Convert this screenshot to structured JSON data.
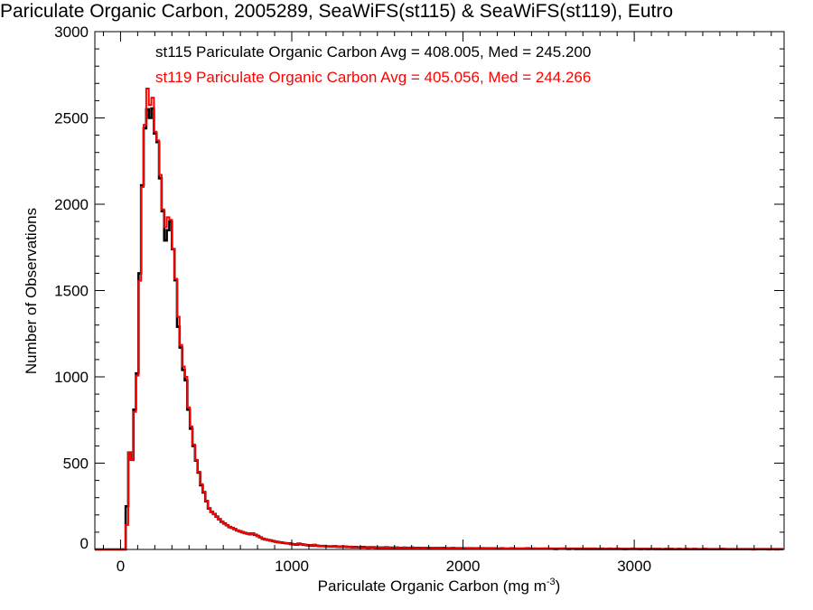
{
  "chart_data": {
    "type": "histogram-step",
    "title": "Pariculate Organic Carbon, 2005289, SeaWiFS(st115) & SeaWiFS(st119), Eutro",
    "xlabel": "Pariculate Organic Carbon (mg m",
    "xlabel_sup": "-3",
    "xlabel_end": ")",
    "ylabel": "Number of Observations",
    "xlim": [
      -150,
      3875
    ],
    "ylim": [
      0,
      3000
    ],
    "x_major_ticks": [
      0,
      1000,
      2000,
      3000
    ],
    "x_tick_labels": [
      "0",
      "1000",
      "2000",
      "3000"
    ],
    "x_minor_step": 100,
    "y_major_ticks": [
      0,
      500,
      1000,
      1500,
      2000,
      2500,
      3000
    ],
    "y_tick_labels": [
      "0",
      "500",
      "1000",
      "1500",
      "2000",
      "2500",
      "3000"
    ],
    "y_minor_step": 100,
    "grid": false,
    "legend_position": "top-left",
    "bin_start": 30,
    "bin_width": 15,
    "series": [
      {
        "name": "st115",
        "legend": "st115 Pariculate Organic Carbon Avg = 408.005, Med = 245.200",
        "color": "#000000",
        "counts": [
          250,
          561,
          519,
          810,
          1020,
          1600,
          2110,
          2440,
          2550,
          2500,
          2555,
          2410,
          2360,
          2150,
          1960,
          1790,
          1850,
          1900,
          1740,
          1560,
          1290,
          1170,
          1040,
          980,
          810,
          700,
          600,
          515,
          445,
          372,
          330,
          280,
          238,
          218,
          205,
          190,
          175,
          160,
          150,
          140,
          130,
          125,
          118,
          110,
          105,
          100,
          95,
          92,
          88,
          92,
          85,
          78,
          70,
          62,
          58,
          55,
          52,
          48,
          45,
          42,
          40,
          38,
          36,
          35,
          32,
          30,
          28,
          34,
          30,
          27,
          25,
          24,
          22,
          26,
          22,
          20,
          19,
          20,
          18,
          18,
          17,
          19,
          16,
          15,
          17,
          16,
          14,
          15,
          13,
          14,
          13,
          12,
          14,
          12,
          11,
          13,
          12,
          11,
          10,
          11,
          10,
          12,
          10,
          9,
          10,
          11,
          9,
          9,
          10,
          9,
          8,
          10,
          9,
          8,
          9,
          8,
          7,
          9,
          8,
          8,
          7,
          8,
          7,
          9,
          7,
          6,
          7,
          8,
          7,
          7,
          6,
          7,
          6,
          6,
          7,
          5,
          6,
          6,
          7,
          6,
          5,
          6,
          5,
          6,
          5,
          5,
          6,
          5,
          5,
          5,
          6,
          5,
          4,
          5,
          5,
          4,
          6,
          5,
          4,
          5,
          4,
          4,
          5,
          4,
          5,
          4,
          4,
          3,
          4,
          4,
          5,
          4,
          3,
          4,
          4,
          3,
          4,
          3,
          4,
          3,
          4,
          3,
          4,
          3,
          3,
          4,
          3,
          3,
          4,
          3,
          3,
          4,
          3,
          3,
          2,
          3,
          3,
          4,
          3,
          3,
          2,
          3,
          3,
          2,
          3,
          3,
          2,
          3,
          2,
          2,
          3,
          2,
          3,
          2,
          2,
          3,
          2,
          2,
          3,
          2,
          2,
          3,
          2,
          2,
          2,
          3,
          2,
          2,
          2,
          2,
          2,
          2,
          3,
          2,
          2,
          2,
          2,
          2,
          2,
          2,
          2,
          2,
          2,
          2,
          1,
          2,
          2,
          2,
          2,
          2,
          1,
          2,
          2,
          1,
          2,
          2
        ]
      },
      {
        "name": "st119",
        "legend": "st119 Pariculate Organic Carbon Avg = 405.056, Med = 244.266",
        "color": "#ff0000",
        "counts": [
          142,
          561,
          519,
          797,
          1007,
          1557,
          2100,
          2460,
          2670,
          2575,
          2617,
          2420,
          2370,
          2170,
          1970,
          1867,
          1925,
          1910,
          1740,
          1568,
          1348,
          1185,
          1060,
          1000,
          823,
          713,
          608,
          519,
          450,
          378,
          335,
          283,
          241,
          220,
          205,
          190,
          175,
          160,
          150,
          140,
          130,
          125,
          118,
          110,
          105,
          100,
          95,
          92,
          88,
          92,
          85,
          78,
          70,
          62,
          58,
          55,
          52,
          48,
          45,
          42,
          40,
          38,
          36,
          35,
          32,
          30,
          28,
          34,
          30,
          27,
          25,
          24,
          22,
          26,
          22,
          20,
          19,
          20,
          18,
          18,
          17,
          19,
          16,
          15,
          17,
          16,
          14,
          15,
          13,
          14,
          13,
          12,
          14,
          12,
          11,
          13,
          12,
          11,
          10,
          11,
          10,
          12,
          10,
          9,
          10,
          11,
          9,
          9,
          10,
          9,
          8,
          10,
          9,
          8,
          9,
          8,
          7,
          9,
          8,
          8,
          7,
          8,
          7,
          9,
          7,
          6,
          7,
          8,
          7,
          7,
          6,
          7,
          6,
          6,
          7,
          5,
          6,
          6,
          7,
          6,
          5,
          6,
          5,
          6,
          5,
          5,
          6,
          5,
          5,
          5,
          6,
          5,
          4,
          5,
          5,
          4,
          6,
          5,
          4,
          5,
          4,
          4,
          5,
          4,
          5,
          4,
          4,
          3,
          4,
          4,
          5,
          4,
          3,
          4,
          4,
          3,
          4,
          3,
          4,
          3,
          4,
          3,
          4,
          3,
          3,
          4,
          3,
          3,
          4,
          3,
          3,
          4,
          3,
          3,
          2,
          3,
          3,
          4,
          3,
          3,
          2,
          3,
          3,
          2,
          3,
          3,
          2,
          3,
          2,
          2,
          3,
          2,
          3,
          2,
          2,
          3,
          2,
          2,
          3,
          2,
          2,
          3,
          2,
          2,
          2,
          3,
          2,
          2,
          2,
          2,
          2,
          2,
          3,
          2,
          2,
          2,
          2,
          2,
          2,
          2,
          2,
          2,
          2,
          2,
          1,
          2,
          2,
          2,
          2,
          2,
          1,
          2,
          2,
          1,
          2,
          2
        ]
      }
    ]
  }
}
